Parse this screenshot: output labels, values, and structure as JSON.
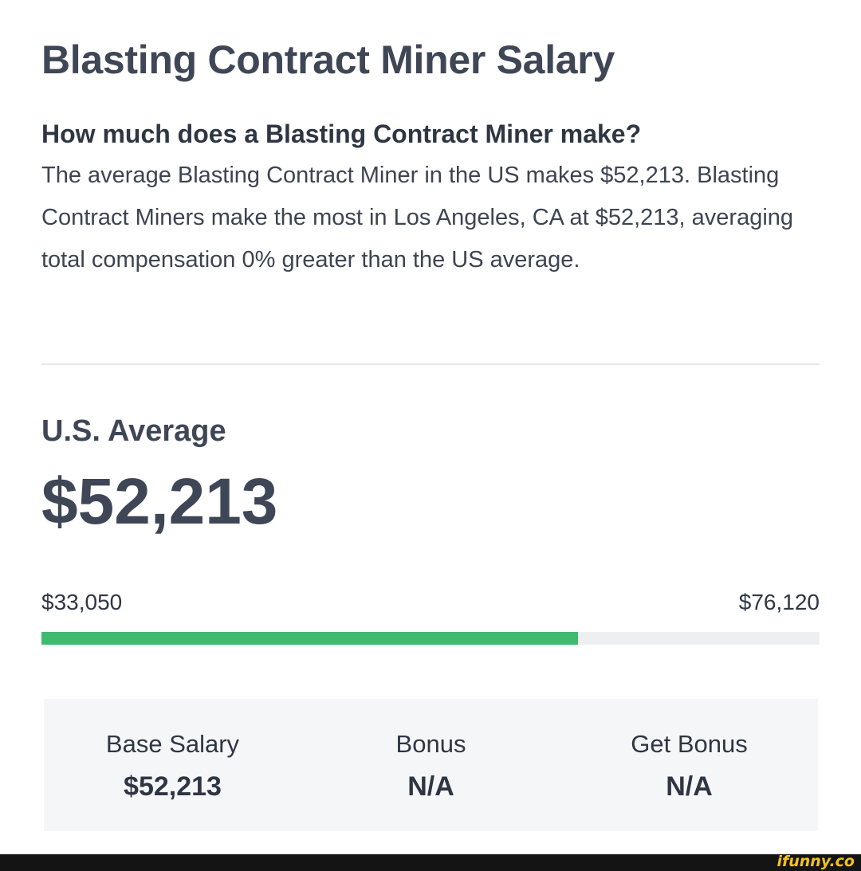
{
  "header": {
    "title": "Blasting Contract Miner Salary",
    "question": "How much does a Blasting Contract Miner make?",
    "summary": "The average Blasting Contract Miner in the US makes $52,213. Blasting Contract Miners make the most in Los Angeles, CA at $52,213, averaging total compensation 0% greater than the US average."
  },
  "average": {
    "label": "U.S. Average",
    "value": "$52,213"
  },
  "range": {
    "min_label": "$33,050",
    "max_label": "$76,120",
    "fill_fraction": 0.69,
    "fill_color": "#3fba6f",
    "track_color": "#eeeff1"
  },
  "stats": [
    {
      "label": "Base Salary",
      "value": "$52,213"
    },
    {
      "label": "Bonus",
      "value": "N/A"
    },
    {
      "label": "Get Bonus",
      "value": "N/A"
    }
  ],
  "footer": {
    "watermark": "ifunny.co"
  }
}
